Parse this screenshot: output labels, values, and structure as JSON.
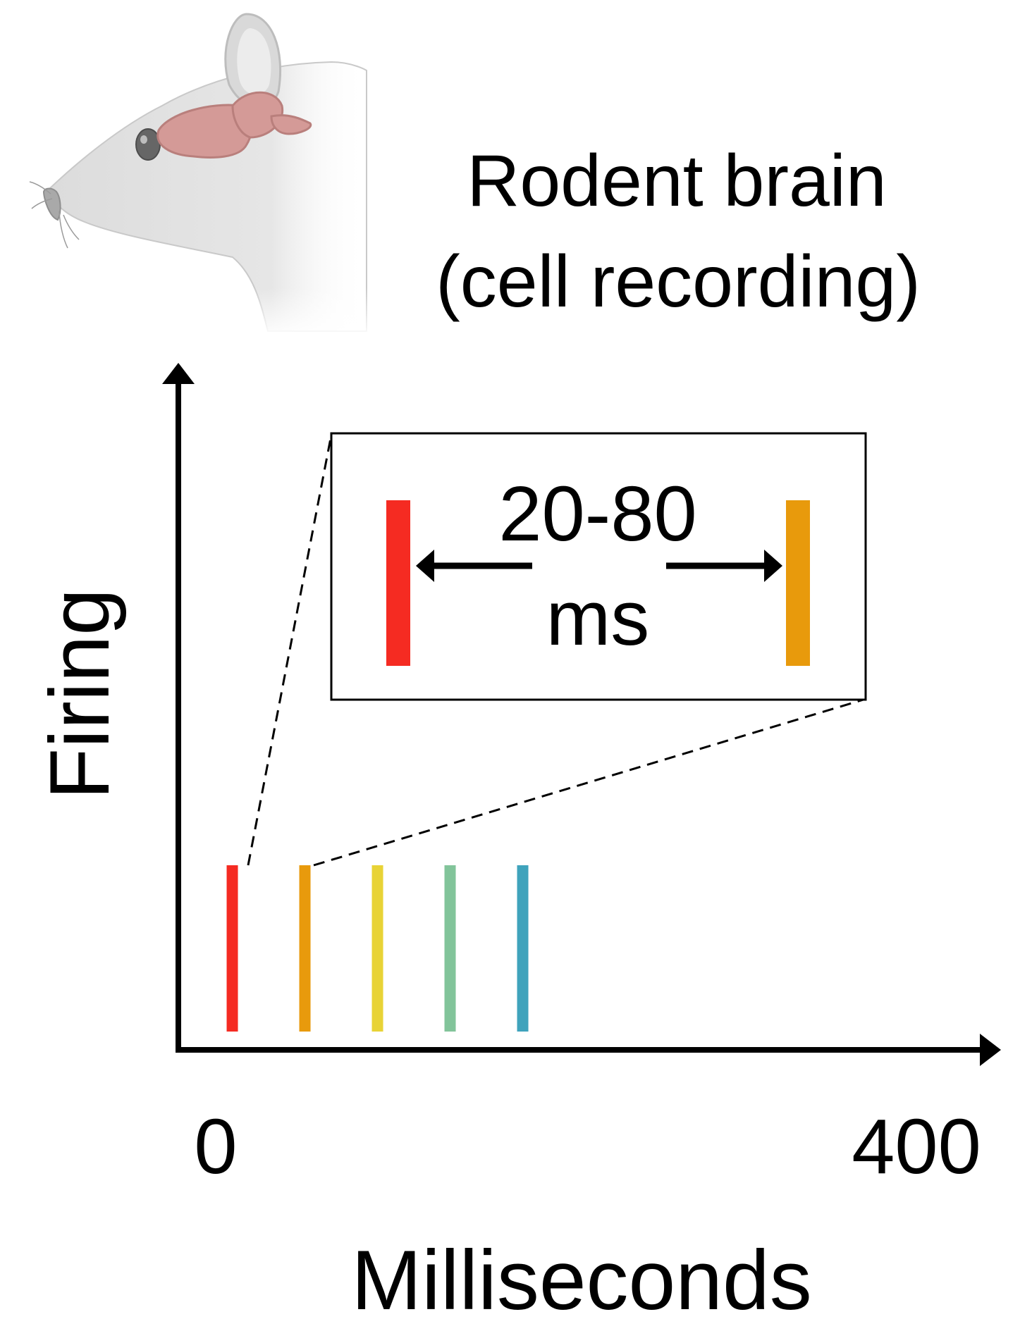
{
  "header": {
    "title_line1": "Rodent brain",
    "title_line2": "(cell recording)"
  },
  "axes": {
    "ylabel": "Firing",
    "xlabel": "Milliseconds",
    "x_min_label": "0",
    "x_max_label": "400"
  },
  "inset": {
    "interval_value": "20-80",
    "interval_unit": "ms"
  },
  "chart_data": {
    "type": "raster",
    "xlabel": "Milliseconds",
    "ylabel": "Firing",
    "xlim": [
      0,
      400
    ],
    "spikes": [
      {
        "x": 27,
        "color": "#f52b22"
      },
      {
        "x": 67,
        "color": "#e89a0c"
      },
      {
        "x": 107,
        "color": "#e8d336"
      },
      {
        "x": 147,
        "color": "#82c49a"
      },
      {
        "x": 187,
        "color": "#3fa3bc"
      }
    ],
    "inset_pair": [
      {
        "color": "#f52b22"
      },
      {
        "color": "#e89a0c"
      }
    ]
  },
  "colors": {
    "axis": "#000000",
    "mouse_body": "#e2e2e2",
    "brain": "#d49a97"
  }
}
